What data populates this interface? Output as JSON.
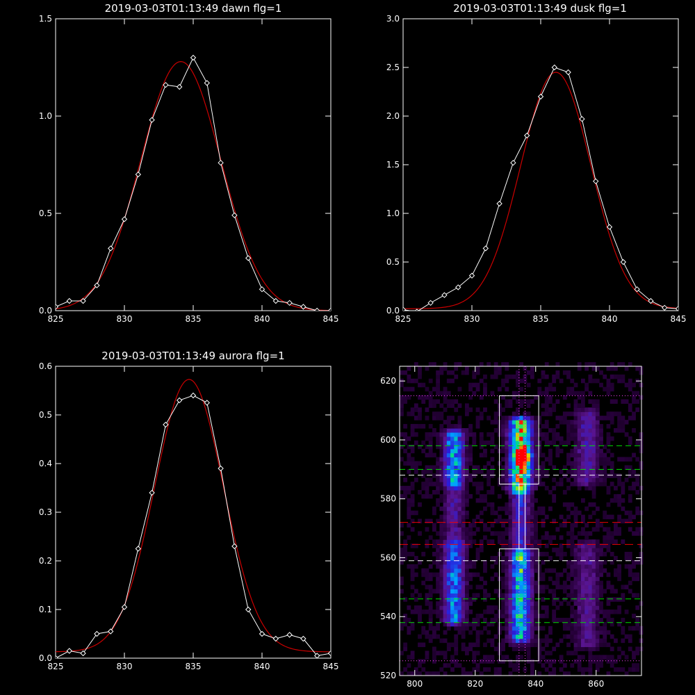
{
  "chart_data": [
    {
      "type": "line",
      "title": "2019-03-03T01:13:49 dawn flg=1",
      "xlim": [
        825,
        845
      ],
      "ylim": [
        0,
        1.5
      ],
      "xticks": [
        "825",
        "830",
        "835",
        "840",
        "845"
      ],
      "yticks": [
        "0.0",
        "0.5",
        "1.0",
        "1.5"
      ],
      "xtick_values": [
        825,
        830,
        835,
        840,
        845
      ],
      "ytick_values": [
        0,
        0.5,
        1.0,
        1.5
      ],
      "series": [
        {
          "kind": "measured",
          "color": "#ffffff",
          "marker": "diamond",
          "x": [
            825,
            826,
            827,
            828,
            829,
            830,
            831,
            832,
            833,
            834,
            835,
            836,
            837,
            838,
            839,
            840,
            841,
            842,
            843,
            844,
            845
          ],
          "y": [
            0.02,
            0.05,
            0.05,
            0.13,
            0.32,
            0.47,
            0.7,
            0.98,
            1.16,
            1.15,
            1.3,
            1.17,
            0.76,
            0.49,
            0.27,
            0.11,
            0.05,
            0.04,
            0.02,
            0.0,
            0.0
          ]
        },
        {
          "kind": "fit",
          "color": "#cc0000",
          "gaussian": {
            "amp": 1.28,
            "center": 834.1,
            "sigma": 2.9,
            "offset": 0.0
          }
        }
      ]
    },
    {
      "type": "line",
      "title": "2019-03-03T01:13:49 dusk flg=1",
      "xlim": [
        825,
        845
      ],
      "ylim": [
        0,
        3.0
      ],
      "xticks": [
        "825",
        "830",
        "835",
        "840",
        "845"
      ],
      "yticks": [
        "0.0",
        "0.5",
        "1.0",
        "1.5",
        "2.0",
        "2.5",
        "3.0"
      ],
      "xtick_values": [
        825,
        830,
        835,
        840,
        845
      ],
      "ytick_values": [
        0,
        0.5,
        1.0,
        1.5,
        2.0,
        2.5,
        3.0
      ],
      "series": [
        {
          "kind": "measured",
          "color": "#ffffff",
          "marker": "diamond",
          "x": [
            825,
            826,
            827,
            828,
            829,
            830,
            831,
            832,
            833,
            834,
            835,
            836,
            837,
            838,
            839,
            840,
            841,
            842,
            843,
            844,
            845
          ],
          "y": [
            0.01,
            -0.01,
            0.08,
            0.16,
            0.24,
            0.36,
            0.64,
            1.1,
            1.52,
            1.8,
            2.2,
            2.5,
            2.45,
            1.97,
            1.33,
            0.86,
            0.5,
            0.22,
            0.1,
            0.03,
            0.02
          ]
        },
        {
          "kind": "fit",
          "color": "#cc0000",
          "gaussian": {
            "amp": 2.43,
            "center": 836.1,
            "sigma": 2.55,
            "offset": 0.02
          }
        }
      ]
    },
    {
      "type": "line",
      "title": "2019-03-03T01:13:49 aurora flg=1",
      "xlim": [
        825,
        845
      ],
      "ylim": [
        0,
        0.6
      ],
      "xticks": [
        "825",
        "830",
        "835",
        "840",
        "845"
      ],
      "yticks": [
        "0.0",
        "0.1",
        "0.2",
        "0.3",
        "0.4",
        "0.5",
        "0.6"
      ],
      "xtick_values": [
        825,
        830,
        835,
        840,
        845
      ],
      "ytick_values": [
        0,
        0.1,
        0.2,
        0.3,
        0.4,
        0.5,
        0.6
      ],
      "series": [
        {
          "kind": "measured",
          "color": "#ffffff",
          "marker": "diamond",
          "x": [
            825,
            826,
            827,
            828,
            829,
            830,
            831,
            832,
            833,
            834,
            835,
            836,
            837,
            838,
            839,
            840,
            841,
            842,
            843,
            844,
            845
          ],
          "y": [
            0.0,
            0.015,
            0.01,
            0.05,
            0.055,
            0.105,
            0.225,
            0.34,
            0.48,
            0.53,
            0.54,
            0.525,
            0.39,
            0.23,
            0.1,
            0.05,
            0.04,
            0.048,
            0.04,
            0.005,
            0.01
          ]
        },
        {
          "kind": "fit",
          "color": "#cc0000",
          "gaussian": {
            "amp": 0.56,
            "center": 834.7,
            "sigma": 2.5,
            "offset": 0.013
          }
        }
      ]
    },
    {
      "type": "heatmap",
      "title": "",
      "xlim": [
        795,
        875
      ],
      "ylim": [
        520,
        625
      ],
      "xticks": [
        "800",
        "820",
        "840",
        "860"
      ],
      "yticks": [
        "520",
        "540",
        "560",
        "580",
        "600",
        "620"
      ],
      "xtick_values": [
        800,
        820,
        840,
        860
      ],
      "ytick_values": [
        520,
        540,
        560,
        580,
        600,
        620
      ],
      "colors": {
        "box": "#ffffff",
        "dotted": "#ff44ff",
        "green_dash": "#00dd00",
        "white_dash": "#ffffff",
        "red_dash": "#ee0000"
      },
      "emission_regions": [
        {
          "x_center": 813,
          "x_width": 2.2,
          "y_from": 585,
          "y_to": 603,
          "strength": 0.5
        },
        {
          "x_center": 813,
          "x_width": 2.2,
          "y_from": 538,
          "y_to": 565,
          "strength": 0.45
        },
        {
          "x_center": 813,
          "x_width": 2.2,
          "y_from": 565,
          "y_to": 585,
          "strength": 0.2
        },
        {
          "x_center": 835,
          "x_width": 2.4,
          "y_from": 583,
          "y_to": 607,
          "strength": 0.8
        },
        {
          "x_center": 835,
          "x_width": 2.2,
          "y_from": 532,
          "y_to": 562,
          "strength": 0.6
        },
        {
          "x_center": 835,
          "x_width": 2.0,
          "y_from": 562,
          "y_to": 583,
          "strength": 0.3
        },
        {
          "x_center": 857,
          "x_width": 2.5,
          "y_from": 585,
          "y_to": 610,
          "strength": 0.22
        },
        {
          "x_center": 857,
          "x_width": 2.5,
          "y_from": 530,
          "y_to": 565,
          "strength": 0.18
        }
      ],
      "hotspot": {
        "x": 836,
        "y": 594,
        "strength": 1.0
      },
      "boxes": [
        {
          "x0": 828,
          "x1": 841,
          "y0": 585,
          "y1": 615
        },
        {
          "x0": 828,
          "x1": 841,
          "y0": 525,
          "y1": 563
        },
        {
          "x0": 834.5,
          "x1": 836.5,
          "y0": 563,
          "y1": 585
        }
      ],
      "dotted_vertical_x": [
        834.5,
        836.5
      ],
      "dotted_horizontal_y": [
        615,
        525
      ],
      "green_dash_y": [
        598,
        590,
        546,
        538
      ],
      "white_dash_y": [
        588,
        559
      ],
      "red_dash_y": [
        572,
        564.5
      ]
    }
  ]
}
